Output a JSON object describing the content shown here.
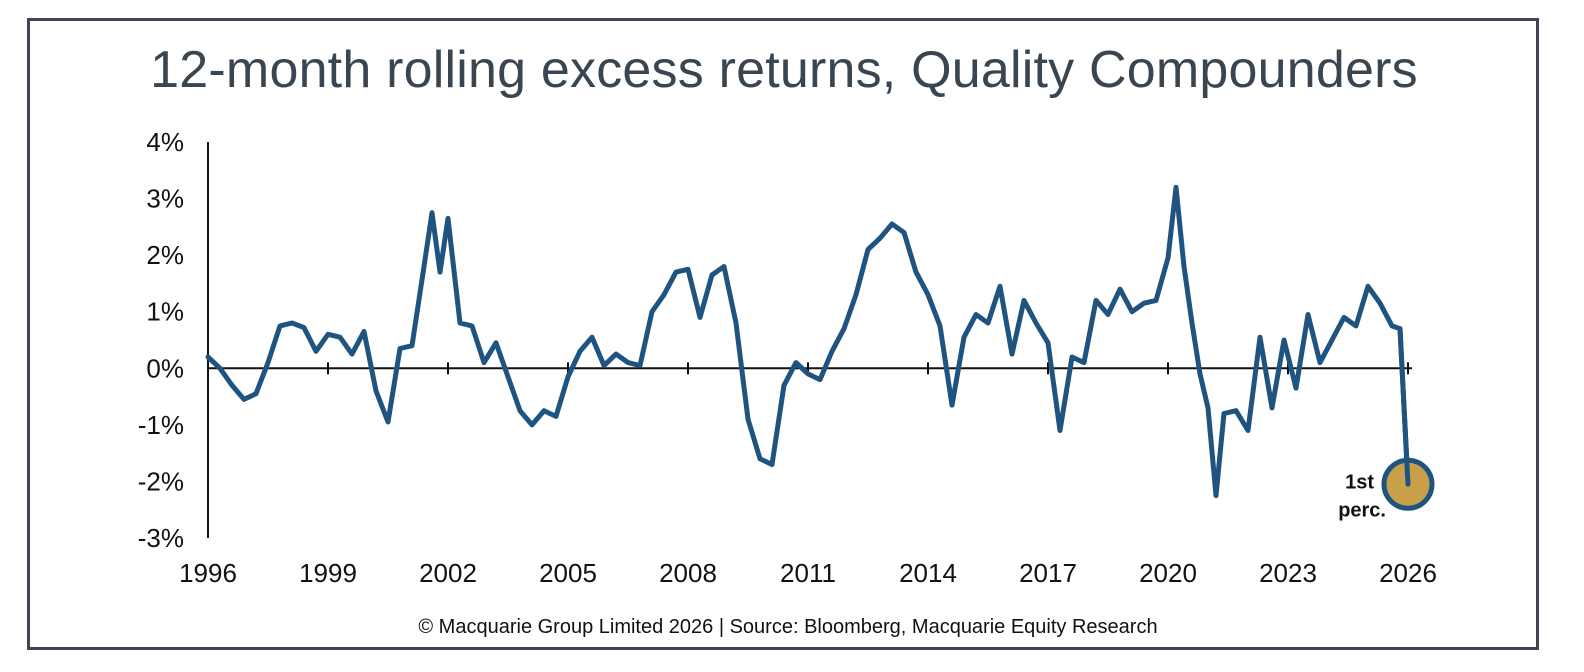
{
  "chart_data": {
    "type": "line",
    "title": "12-month rolling excess returns, Quality Compounders",
    "xlabel": "",
    "ylabel": "",
    "x_ticks": [
      "1996",
      "1999",
      "2002",
      "2005",
      "2008",
      "2011",
      "2014",
      "2017",
      "2020",
      "2023",
      "2026"
    ],
    "y_ticks": [
      "4%",
      "3%",
      "2%",
      "1%",
      "0%",
      "-1%",
      "-2%",
      "-3%"
    ],
    "xlim": [
      1996,
      2026
    ],
    "ylim": [
      -3,
      4
    ],
    "grid": false,
    "series": [
      {
        "name": "",
        "color": "#1f5480",
        "x": [
          1996.0,
          1996.3,
          1996.6,
          1996.9,
          1997.2,
          1997.5,
          1997.8,
          1998.1,
          1998.4,
          1998.7,
          1999.0,
          1999.3,
          1999.6,
          1999.9,
          2000.2,
          2000.5,
          2000.8,
          2001.1,
          2001.4,
          2001.6,
          2001.8,
          2002.0,
          2002.3,
          2002.6,
          2002.9,
          2003.2,
          2003.5,
          2003.8,
          2004.1,
          2004.4,
          2004.7,
          2005.0,
          2005.3,
          2005.6,
          2005.9,
          2006.2,
          2006.5,
          2006.8,
          2007.1,
          2007.4,
          2007.7,
          2008.0,
          2008.3,
          2008.6,
          2008.9,
          2009.2,
          2009.5,
          2009.8,
          2010.1,
          2010.4,
          2010.7,
          2011.0,
          2011.3,
          2011.6,
          2011.9,
          2012.2,
          2012.5,
          2012.8,
          2013.1,
          2013.4,
          2013.7,
          2014.0,
          2014.3,
          2014.6,
          2014.9,
          2015.2,
          2015.5,
          2015.8,
          2016.1,
          2016.4,
          2016.7,
          2017.0,
          2017.3,
          2017.6,
          2017.9,
          2018.2,
          2018.5,
          2018.8,
          2019.1,
          2019.4,
          2019.7,
          2020.0,
          2020.2,
          2020.4,
          2020.6,
          2020.8,
          2021.0,
          2021.2,
          2021.4,
          2021.7,
          2022.0,
          2022.3,
          2022.6,
          2022.9,
          2023.2,
          2023.5,
          2023.8,
          2024.1,
          2024.4,
          2024.7,
          2025.0,
          2025.3,
          2025.6,
          2025.8,
          2026.0
        ],
        "values": [
          0.2,
          0.0,
          -0.3,
          -0.55,
          -0.45,
          0.1,
          0.75,
          0.8,
          0.72,
          0.3,
          0.6,
          0.55,
          0.25,
          0.65,
          -0.4,
          -0.95,
          0.35,
          0.4,
          1.8,
          2.75,
          1.7,
          2.65,
          0.8,
          0.75,
          0.1,
          0.45,
          -0.15,
          -0.75,
          -1.0,
          -0.75,
          -0.85,
          -0.15,
          0.3,
          0.55,
          0.05,
          0.25,
          0.1,
          0.05,
          1.0,
          1.3,
          1.7,
          1.75,
          0.9,
          1.65,
          1.8,
          0.8,
          -0.9,
          -1.6,
          -1.7,
          -0.3,
          0.1,
          -0.1,
          -0.2,
          0.3,
          0.7,
          1.3,
          2.1,
          2.3,
          2.55,
          2.4,
          1.7,
          1.3,
          0.75,
          -0.65,
          0.55,
          0.95,
          0.8,
          1.45,
          0.25,
          1.2,
          0.8,
          0.45,
          -1.1,
          0.2,
          0.1,
          1.2,
          0.95,
          1.4,
          1.0,
          1.15,
          1.2,
          1.95,
          3.2,
          1.8,
          0.8,
          -0.1,
          -0.7,
          -2.25,
          -0.8,
          -0.75,
          -1.1,
          0.55,
          -0.7,
          0.5,
          -0.35,
          0.95,
          0.1,
          0.5,
          0.9,
          0.75,
          1.45,
          1.15,
          0.75,
          0.7,
          -2.05
        ]
      }
    ],
    "annotations": [
      {
        "line1": "1st",
        "line2": "perc.",
        "x": 2026.0,
        "y": -2.05,
        "marker_color": "#c8a04a"
      }
    ]
  },
  "footer": "© Macquarie Group Limited 2026 | Source: Bloomberg, Macquarie Equity Research"
}
